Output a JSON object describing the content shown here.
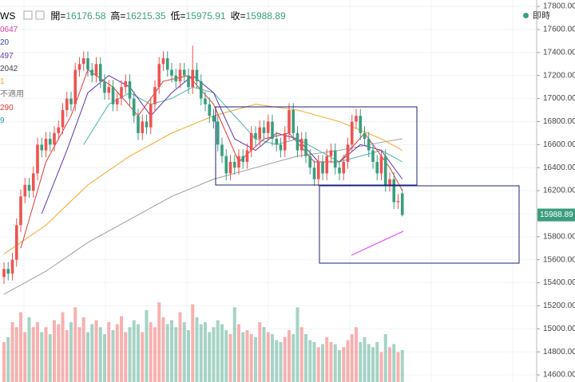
{
  "chart_data": {
    "type": "candlestick",
    "title": "WS",
    "header": [
      {
        "label": "開=",
        "value": 16176.58
      },
      {
        "label": "高=",
        "value": 16215.35
      },
      {
        "label": "低=",
        "value": 15975.91
      },
      {
        "label": "收=",
        "value": 15988.89
      }
    ],
    "legend": [
      {
        "text": "0647",
        "color": "#e040a0"
      },
      {
        "text": "20",
        "color": "#3949ab"
      },
      {
        "text": "497",
        "color": "#5e35b1"
      },
      {
        "text": "2042",
        "color": "#424242"
      },
      {
        "text": "1",
        "color": "#f5a623"
      },
      {
        "text": "不適用",
        "color": "#777777"
      },
      {
        "text": "290",
        "color": "#e53935"
      },
      {
        "text": "9",
        "color": "#26a69a"
      }
    ],
    "status": "即時",
    "up_color": "#ef5350",
    "down_color": "#3a9e7e",
    "open": [
      15450,
      15520,
      15480,
      15600,
      15900,
      16150,
      16250,
      16200,
      16350,
      16600,
      16550,
      16650,
      16600,
      16700,
      16750,
      16900,
      17000,
      16950,
      17250,
      17300,
      17350,
      17250,
      17200,
      17300,
      17150,
      17050,
      17100,
      16950,
      17000,
      17100,
      17150,
      17000,
      16850,
      16700,
      16800,
      16750,
      16950,
      17100,
      17300,
      17350,
      17250,
      17200,
      17150,
      17250,
      17200,
      17100,
      17250,
      17150,
      17000,
      16950,
      16850,
      16800,
      16600,
      16500,
      16350,
      16450,
      16400,
      16500,
      16450,
      16550,
      16700,
      16650,
      16750,
      16700,
      16800,
      16650,
      16600,
      16550,
      16700,
      16900,
      16700,
      16550,
      16650,
      16500,
      16400,
      16300,
      16450,
      16350,
      16500,
      16550,
      16400,
      16350,
      16450,
      16600,
      16800,
      16850,
      16700,
      16650,
      16550,
      16450,
      16350,
      16500,
      16250,
      16300,
      16100,
      16176.58
    ],
    "high": [
      15580,
      15580,
      15660,
      15960,
      16210,
      16310,
      16310,
      16410,
      16660,
      16660,
      16710,
      16710,
      16760,
      16810,
      16960,
      17060,
      17060,
      17310,
      17360,
      17410,
      17410,
      17310,
      17360,
      17360,
      17210,
      17160,
      17160,
      17060,
      17160,
      17210,
      17210,
      17060,
      16910,
      16860,
      16860,
      17010,
      17160,
      17360,
      17410,
      17410,
      17310,
      17260,
      17310,
      17310,
      17260,
      17460,
      17310,
      17210,
      17060,
      17010,
      16910,
      16860,
      16660,
      16560,
      16510,
      16510,
      16560,
      16560,
      16610,
      16760,
      16760,
      16810,
      16810,
      16860,
      16860,
      16710,
      16660,
      16760,
      16960,
      16960,
      16760,
      16710,
      16710,
      16560,
      16460,
      16510,
      16510,
      16560,
      16610,
      16610,
      16460,
      16510,
      16660,
      16860,
      16910,
      16910,
      16760,
      16710,
      16610,
      16510,
      16560,
      16560,
      16360,
      16360,
      16170,
      16215.35
    ],
    "low": [
      15390,
      15420,
      15420,
      15540,
      15840,
      16090,
      16140,
      16140,
      16290,
      16490,
      16490,
      16540,
      16540,
      16640,
      16690,
      16840,
      16890,
      16890,
      17190,
      17240,
      17190,
      17140,
      17140,
      17090,
      16990,
      16990,
      16890,
      16890,
      16940,
      17040,
      16940,
      16790,
      16640,
      16640,
      16690,
      16690,
      16890,
      17040,
      17240,
      17190,
      17140,
      17090,
      17090,
      17140,
      17040,
      17040,
      17090,
      16940,
      16890,
      16790,
      16740,
      16540,
      16440,
      16290,
      16290,
      16340,
      16340,
      16390,
      16390,
      16490,
      16590,
      16590,
      16640,
      16640,
      16590,
      16540,
      16490,
      16490,
      16640,
      16640,
      16490,
      16490,
      16440,
      16340,
      16240,
      16240,
      16290,
      16290,
      16440,
      16340,
      16290,
      16290,
      16390,
      16540,
      16740,
      16640,
      16590,
      16490,
      16390,
      16290,
      16290,
      16190,
      16190,
      16040,
      16040,
      15975.91
    ],
    "close": [
      15520,
      15480,
      15600,
      15900,
      16150,
      16250,
      16200,
      16350,
      16600,
      16550,
      16650,
      16600,
      16700,
      16750,
      16900,
      17000,
      16950,
      17250,
      17300,
      17350,
      17250,
      17200,
      17300,
      17150,
      17050,
      17100,
      16950,
      17000,
      17100,
      17150,
      17000,
      16850,
      16700,
      16800,
      16750,
      16950,
      17100,
      17300,
      17350,
      17250,
      17200,
      17150,
      17250,
      17200,
      17100,
      17250,
      17150,
      17000,
      16950,
      16850,
      16800,
      16600,
      16500,
      16350,
      16450,
      16400,
      16500,
      16450,
      16550,
      16700,
      16650,
      16750,
      16700,
      16800,
      16650,
      16600,
      16550,
      16700,
      16900,
      16700,
      16550,
      16650,
      16500,
      16400,
      16300,
      16450,
      16350,
      16500,
      16550,
      16400,
      16350,
      16450,
      16600,
      16800,
      16850,
      16700,
      16650,
      16550,
      16450,
      16350,
      16500,
      16250,
      16300,
      16100,
      16110,
      15988.89
    ],
    "volume": [
      40,
      45,
      60,
      55,
      70,
      50,
      65,
      55,
      60,
      50,
      55,
      48,
      62,
      58,
      70,
      52,
      60,
      75,
      55,
      65,
      50,
      58,
      62,
      55,
      48,
      60,
      52,
      58,
      66,
      50,
      55,
      62,
      58,
      50,
      72,
      60,
      55,
      80,
      65,
      58,
      62,
      55,
      70,
      60,
      52,
      78,
      65,
      58,
      60,
      50,
      55,
      62,
      58,
      52,
      48,
      75,
      58,
      50,
      52,
      48,
      45,
      60,
      55,
      50,
      48,
      42,
      40,
      45,
      52,
      48,
      75,
      55,
      48,
      42,
      40,
      35,
      38,
      45,
      40,
      38,
      32,
      35,
      42,
      48,
      55,
      40,
      45,
      38,
      35,
      40,
      30,
      48,
      35,
      38,
      30,
      32
    ],
    "moving_averages": [
      {
        "color": "#9e9e9e",
        "x": [
          0,
          10,
          20,
          30,
          40,
          50,
          60,
          70,
          80,
          90,
          95
        ],
        "values": [
          15300,
          15500,
          15750,
          15950,
          16150,
          16300,
          16400,
          16500,
          16550,
          16620,
          16650
        ]
      },
      {
        "color": "#f5a623",
        "x": [
          0,
          10,
          20,
          30,
          40,
          50,
          60,
          70,
          80,
          90,
          95
        ],
        "values": [
          15650,
          15900,
          16250,
          16500,
          16700,
          16850,
          16950,
          16900,
          16800,
          16650,
          16550
        ]
      },
      {
        "color": "#4db6ac",
        "x": [
          19,
          25,
          30,
          35,
          40,
          45,
          50,
          55,
          60,
          65,
          70,
          75,
          80,
          85,
          90,
          95
        ],
        "values": [
          16600,
          16950,
          17050,
          16950,
          17000,
          17100,
          17050,
          16850,
          16650,
          16600,
          16650,
          16550,
          16450,
          16500,
          16550,
          16450
        ]
      },
      {
        "color": "#5e35b1",
        "x": [
          9,
          15,
          20,
          25,
          30,
          35,
          40,
          45,
          50,
          55,
          60,
          65,
          70,
          75,
          80,
          85,
          90,
          95
        ],
        "values": [
          16000,
          16550,
          17050,
          17200,
          17100,
          16850,
          17050,
          17200,
          17050,
          16650,
          16550,
          16700,
          16650,
          16450,
          16450,
          16600,
          16550,
          16300
        ]
      },
      {
        "color": "#e53935",
        "x": [
          4,
          10,
          16,
          20,
          26,
          32,
          38,
          44,
          50,
          56,
          62,
          68,
          74,
          80,
          86,
          92,
          95
        ],
        "values": [
          15700,
          16450,
          16850,
          17250,
          17100,
          16850,
          17150,
          17200,
          16950,
          16450,
          16650,
          16700,
          16450,
          16450,
          16700,
          16400,
          16200
        ]
      }
    ],
    "ylim": [
      14538,
      17856
    ],
    "yticks": [
      {
        "value": 17800,
        "label": "17800.00"
      },
      {
        "value": 17600,
        "label": "17600.00"
      },
      {
        "value": 17400,
        "label": "17400.00"
      },
      {
        "value": 17200,
        "label": "17200.00"
      },
      {
        "value": 17000,
        "label": "17000.00"
      },
      {
        "value": 16800,
        "label": "16800.00"
      },
      {
        "value": 16600,
        "label": "16600.00"
      },
      {
        "value": 16400,
        "label": "16400.00"
      },
      {
        "value": 16200,
        "label": "16200.00"
      },
      {
        "value": 16000,
        "label": "16000.00"
      },
      {
        "value": 15800,
        "label": "15800.00"
      },
      {
        "value": 15600,
        "label": "15600.00"
      },
      {
        "value": 15400,
        "label": "15400.00"
      },
      {
        "value": 15200,
        "label": "15200.00"
      },
      {
        "value": 15000,
        "label": "15000.00"
      },
      {
        "value": 14800,
        "label": "14800.00"
      },
      {
        "value": 14600,
        "label": "14600.00"
      }
    ],
    "grid": true
  }
}
